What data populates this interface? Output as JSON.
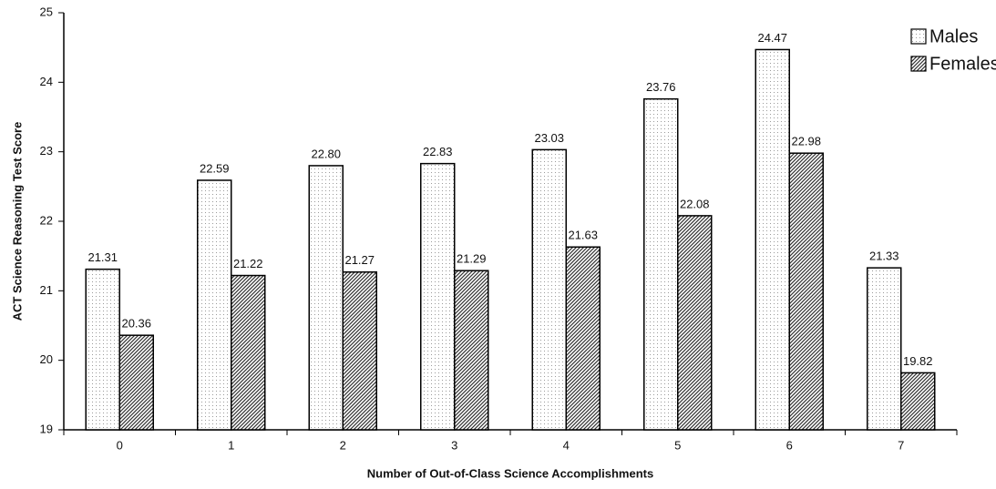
{
  "chart_data": {
    "type": "bar",
    "x_label": "Number of Out-of-Class Science Accomplishments",
    "y_label": "ACT Science Reasoning Test Score",
    "categories": [
      "0",
      "1",
      "2",
      "3",
      "4",
      "5",
      "6",
      "7"
    ],
    "series": [
      {
        "name": "Males",
        "color": "#9a9a9a",
        "pattern": "dots",
        "values": [
          21.31,
          22.59,
          22.8,
          22.83,
          23.03,
          23.76,
          24.47,
          21.33
        ],
        "value_labels": [
          "21.31",
          "22.59",
          "22.80",
          "22.83",
          "23.03",
          "23.76",
          "24.47",
          "21.33"
        ]
      },
      {
        "name": "Females",
        "color": "#333333",
        "pattern": "hatch",
        "values": [
          20.36,
          21.22,
          21.27,
          21.29,
          21.63,
          22.08,
          22.98,
          19.82
        ],
        "value_labels": [
          "20.36",
          "21.22",
          "21.27",
          "21.29",
          "21.63",
          "22.08",
          "22.98",
          "19.82"
        ]
      }
    ],
    "ylim": [
      19,
      25
    ],
    "yticks": [
      19,
      20,
      21,
      22,
      23,
      24,
      25
    ],
    "legend": "upper right",
    "grid": false
  }
}
